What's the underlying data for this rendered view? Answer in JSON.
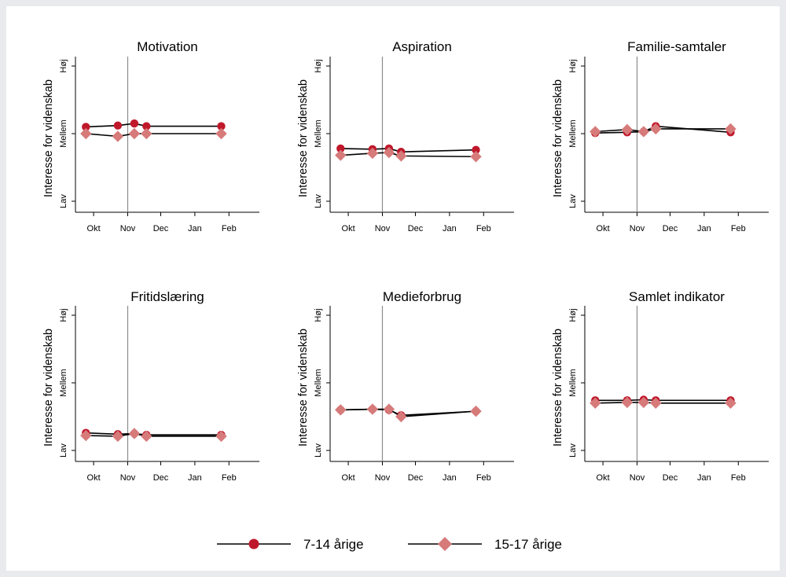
{
  "chart_data": [
    {
      "type": "line",
      "title": "Motivation",
      "ylabel": "Interesse for videnskab",
      "x_ticks": [
        "Okt",
        "Nov",
        "Dec",
        "Jan",
        "Feb"
      ],
      "y_ticks": [
        "Lav",
        "Mellem",
        "Høj"
      ],
      "ylim": [
        0,
        2
      ],
      "vline": "Nov 15",
      "series": [
        {
          "name": "7-14 årige",
          "x": [
            "Okt 8",
            "Nov 6",
            "Nov 21",
            "Dec 2",
            "Feb 8"
          ],
          "y": [
            1.1,
            1.12,
            1.15,
            1.11,
            1.11
          ]
        },
        {
          "name": "15-17 årige",
          "x": [
            "Okt 8",
            "Nov 6",
            "Nov 21",
            "Dec 2",
            "Feb 8"
          ],
          "y": [
            1.0,
            0.96,
            1.0,
            1.0,
            1.0
          ]
        }
      ]
    },
    {
      "type": "line",
      "title": "Aspiration",
      "ylabel": "Interesse for videnskab",
      "x_ticks": [
        "Okt",
        "Nov",
        "Dec",
        "Jan",
        "Feb"
      ],
      "y_ticks": [
        "Lav",
        "Mellem",
        "Høj"
      ],
      "ylim": [
        0,
        2
      ],
      "vline": "Nov 15",
      "series": [
        {
          "name": "7-14 årige",
          "x": [
            "Okt 8",
            "Nov 6",
            "Nov 21",
            "Dec 2",
            "Feb 8"
          ],
          "y": [
            0.78,
            0.77,
            0.78,
            0.73,
            0.76
          ]
        },
        {
          "name": "15-17 årige",
          "x": [
            "Okt 8",
            "Nov 6",
            "Nov 21",
            "Dec 2",
            "Feb 8"
          ],
          "y": [
            0.68,
            0.71,
            0.72,
            0.67,
            0.66
          ]
        }
      ]
    },
    {
      "type": "line",
      "title": "Familie-samtaler",
      "ylabel": "Interesse for videnskab",
      "x_ticks": [
        "Okt",
        "Nov",
        "Dec",
        "Jan",
        "Feb"
      ],
      "y_ticks": [
        "Lav",
        "Mellem",
        "Høj"
      ],
      "ylim": [
        0,
        2
      ],
      "vline": "Nov 15",
      "series": [
        {
          "name": "7-14 årige",
          "x": [
            "Okt 8",
            "Nov 6",
            "Nov 21",
            "Dec 2",
            "Feb 8"
          ],
          "y": [
            1.01,
            1.02,
            1.03,
            1.11,
            1.02
          ]
        },
        {
          "name": "15-17 årige",
          "x": [
            "Okt 8",
            "Nov 6",
            "Nov 21",
            "Dec 2",
            "Feb 8"
          ],
          "y": [
            1.03,
            1.06,
            1.03,
            1.07,
            1.07
          ]
        }
      ]
    },
    {
      "type": "line",
      "title": "Fritidslæring",
      "ylabel": "Interesse for videnskab",
      "x_ticks": [
        "Okt",
        "Nov",
        "Dec",
        "Jan",
        "Feb"
      ],
      "y_ticks": [
        "Lav",
        "Mellem",
        "Høj"
      ],
      "ylim": [
        0,
        2
      ],
      "vline": "Nov 15",
      "series": [
        {
          "name": "7-14 årige",
          "x": [
            "Okt 8",
            "Nov 6",
            "Nov 21",
            "Dec 2",
            "Feb 8"
          ],
          "y": [
            0.26,
            0.24,
            0.25,
            0.23,
            0.23
          ]
        },
        {
          "name": "15-17 årige",
          "x": [
            "Okt 8",
            "Nov 6",
            "Nov 21",
            "Dec 2",
            "Feb 8"
          ],
          "y": [
            0.22,
            0.21,
            0.25,
            0.21,
            0.21
          ]
        }
      ]
    },
    {
      "type": "line",
      "title": "Medieforbrug",
      "ylabel": "Interesse for videnskab",
      "x_ticks": [
        "Okt",
        "Nov",
        "Dec",
        "Jan",
        "Feb"
      ],
      "y_ticks": [
        "Lav",
        "Mellem",
        "Høj"
      ],
      "ylim": [
        0,
        2
      ],
      "vline": "Nov 15",
      "series": [
        {
          "name": "7-14 årige",
          "x": [
            "Okt 8",
            "Nov 6",
            "Nov 21",
            "Dec 2",
            "Feb 8"
          ],
          "y": [
            0.6,
            0.61,
            0.6,
            0.52,
            0.58
          ]
        },
        {
          "name": "15-17 årige",
          "x": [
            "Okt 8",
            "Nov 6",
            "Nov 21",
            "Dec 2",
            "Feb 8"
          ],
          "y": [
            0.6,
            0.61,
            0.61,
            0.5,
            0.58
          ]
        }
      ]
    },
    {
      "type": "line",
      "title": "Samlet indikator",
      "ylabel": "Interesse for videnskab",
      "x_ticks": [
        "Okt",
        "Nov",
        "Dec",
        "Jan",
        "Feb"
      ],
      "y_ticks": [
        "Lav",
        "Mellem",
        "Høj"
      ],
      "ylim": [
        0,
        2
      ],
      "vline": "Nov 15",
      "series": [
        {
          "name": "7-14 årige",
          "x": [
            "Okt 8",
            "Nov 6",
            "Nov 21",
            "Dec 2",
            "Feb 8"
          ],
          "y": [
            0.74,
            0.74,
            0.75,
            0.74,
            0.74
          ]
        },
        {
          "name": "15-17 årige",
          "x": [
            "Okt 8",
            "Nov 6",
            "Nov 21",
            "Dec 2",
            "Feb 8"
          ],
          "y": [
            0.7,
            0.71,
            0.71,
            0.7,
            0.7
          ]
        }
      ]
    }
  ],
  "legend": {
    "position": "bottom",
    "items": [
      {
        "label": "7-14 årige",
        "marker": "circle",
        "color": "#c0182b"
      },
      {
        "label": "15-17 årige",
        "marker": "diamond",
        "color": "#d67a7a"
      }
    ]
  }
}
